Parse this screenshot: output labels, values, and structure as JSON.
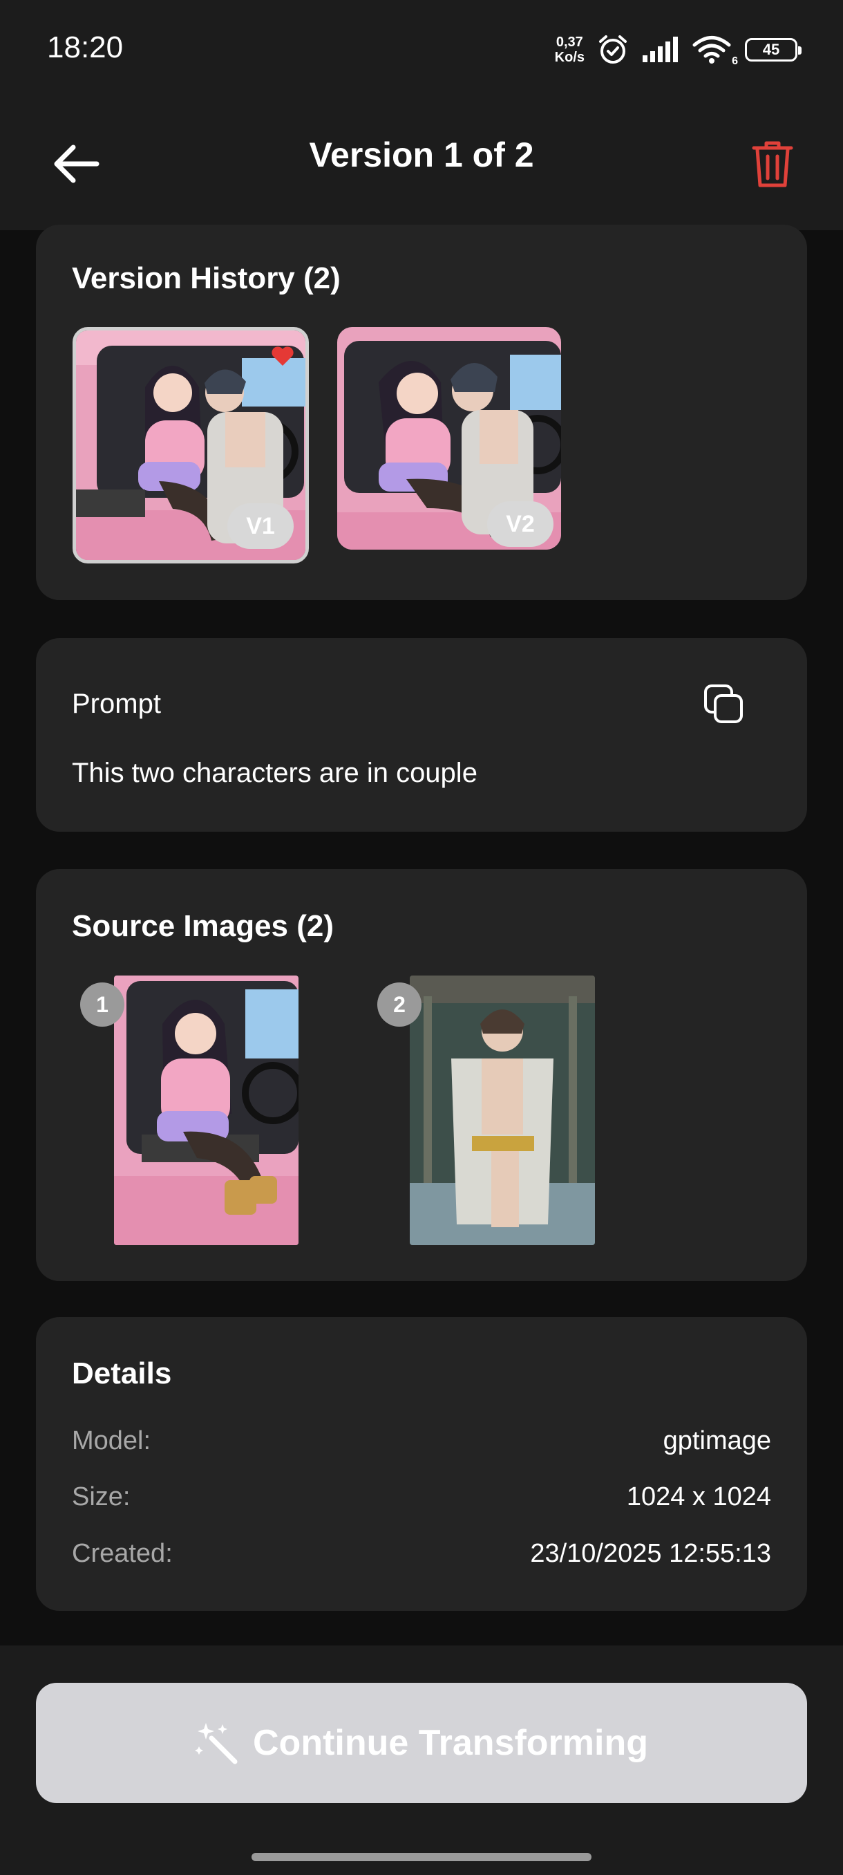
{
  "status_bar": {
    "time": "18:20",
    "net_speed_value": "0,37",
    "net_speed_unit": "Ko/s",
    "wifi_badge": "6",
    "battery_level": "45",
    "icons": [
      "alarm-icon",
      "signal-icon",
      "wifi-icon",
      "battery-icon"
    ]
  },
  "header": {
    "title": "Version 1 of 2",
    "back_icon": "arrow-left-icon",
    "delete_icon": "trash-icon"
  },
  "version_history": {
    "title": "Version History (2)",
    "versions": [
      {
        "label": "V1",
        "selected": true,
        "favorite": true
      },
      {
        "label": "V2",
        "selected": false,
        "favorite": false
      }
    ]
  },
  "prompt": {
    "label": "Prompt",
    "text": "This two characters are in couple",
    "copy_icon": "copy-icon"
  },
  "source_images": {
    "title": "Source Images (2)",
    "items": [
      {
        "index": "1"
      },
      {
        "index": "2"
      }
    ]
  },
  "details": {
    "title": "Details",
    "rows": [
      {
        "label": "Model:",
        "value": "gptimage"
      },
      {
        "label": "Size:",
        "value": "1024 x 1024"
      },
      {
        "label": "Created:",
        "value": "23/10/2025 12:55:13"
      }
    ]
  },
  "actions": {
    "continue_label": "Continue Transforming",
    "continue_icon": "magic-wand-icon"
  },
  "colors": {
    "background": "#0f0f0f",
    "surface": "#242424",
    "header": "#1c1c1c",
    "danger": "#e0413a",
    "favorite": "#e53935",
    "cta": "#d4d4d8"
  }
}
